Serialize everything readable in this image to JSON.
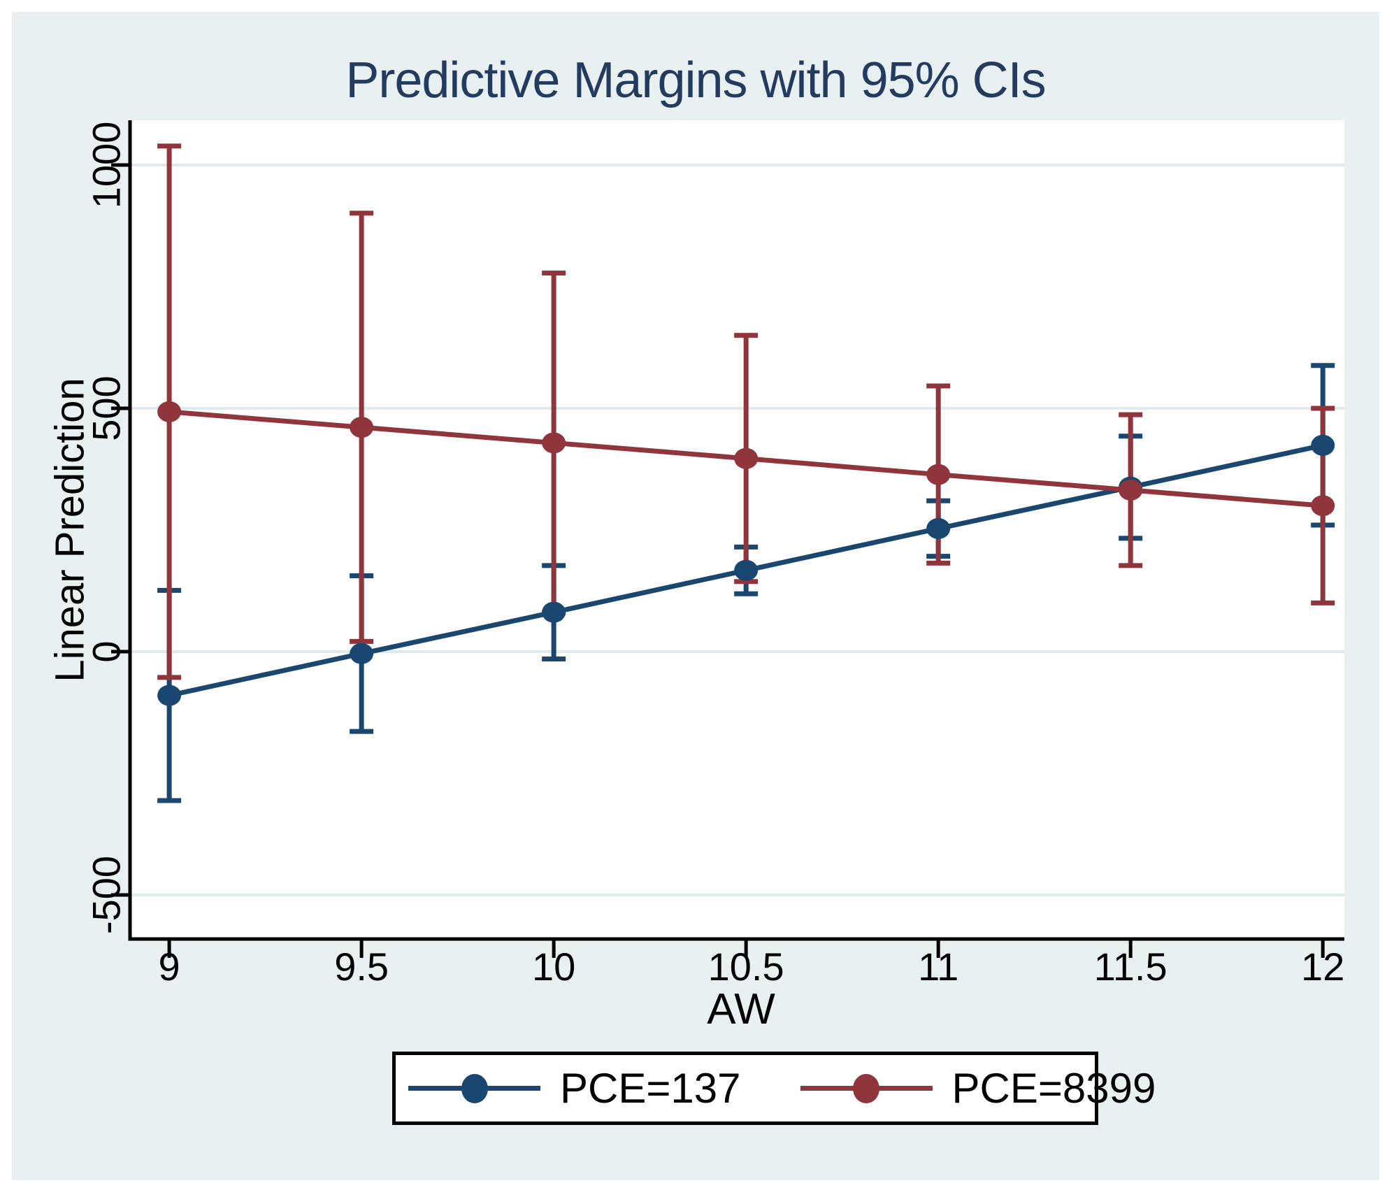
{
  "colors": {
    "page_bg": "#ffffff",
    "canvas_bg": "#e9f0f2",
    "plot_bg": "#ffffff",
    "grid": "#e0ebee",
    "axis": "#000000",
    "title": "#243b60",
    "navy": "#1a476f",
    "maroon": "#90353b"
  },
  "chart_data": {
    "type": "line",
    "title": "Predictive Margins with 95% CIs",
    "xlabel": "AW",
    "ylabel": "Linear Prediction",
    "ci_level": "95%",
    "grid": true,
    "legend_position": "bottom-center",
    "x": [
      9,
      9.5,
      10,
      10.5,
      11,
      11.5,
      12
    ],
    "x_tick_labels": [
      "9",
      "9.5",
      "10",
      "10.5",
      "11",
      "11.5",
      "12"
    ],
    "y_ticks": [
      -500,
      0,
      500,
      1000
    ],
    "y_tick_labels": [
      "-500",
      "0",
      "500",
      "1000"
    ],
    "xlim": [
      8.898,
      12.056
    ],
    "ylim": [
      -590.5,
      1092
    ],
    "series": [
      {
        "name": "PCE=137",
        "color": "#1a476f",
        "values": [
          -90,
          -4,
          81,
          167,
          253,
          338,
          424
        ],
        "ci_low": [
          -306,
          -164,
          -15,
          119,
          196,
          233,
          260
        ],
        "ci_high": [
          126,
          156,
          177,
          215,
          310,
          443,
          588
        ]
      },
      {
        "name": "PCE=8399",
        "color": "#90353b",
        "values": [
          493,
          461,
          429,
          397,
          364,
          332,
          300
        ],
        "ci_low": [
          -53,
          21,
          80,
          144,
          182,
          177,
          100
        ],
        "ci_high": [
          1039,
          901,
          778,
          650,
          546,
          487,
          500
        ]
      }
    ]
  }
}
